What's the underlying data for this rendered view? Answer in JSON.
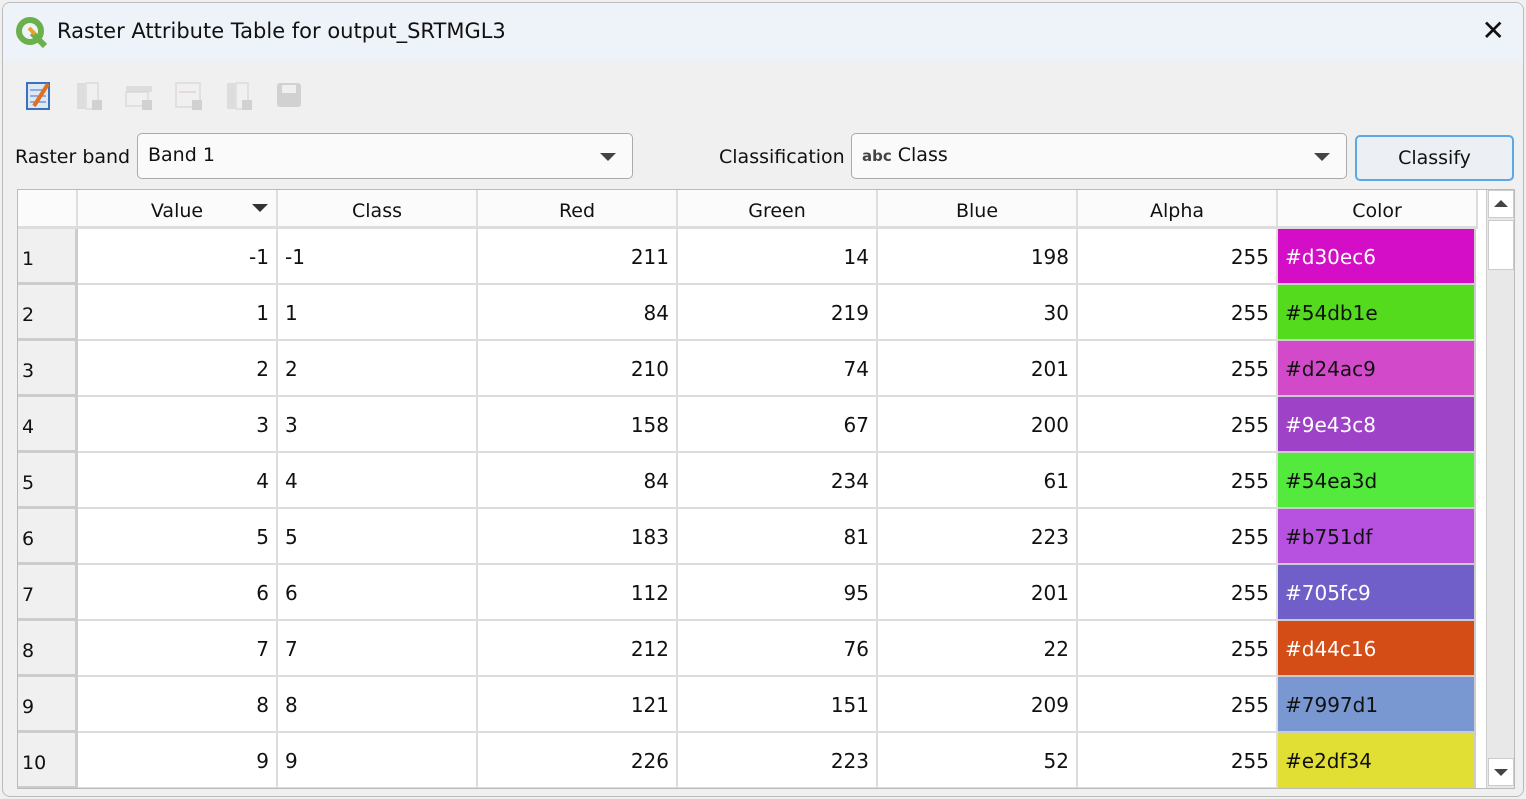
{
  "window": {
    "title": "Raster Attribute Table for output_SRTMGL3",
    "close_icon": "close-icon"
  },
  "toolbar": {
    "icons": [
      "edit-table-icon",
      "add-column-icon",
      "add-row-icon",
      "remove-row-icon",
      "remove-column-icon",
      "save-icon"
    ]
  },
  "band": {
    "label": "Raster band",
    "value": "Band 1"
  },
  "classification": {
    "label": "Classification",
    "prefix": "abc",
    "value": "Class"
  },
  "classify_label": "Classify",
  "table": {
    "columns": [
      "Value",
      "Class",
      "Red",
      "Green",
      "Blue",
      "Alpha",
      "Color"
    ],
    "rows": [
      {
        "n": "1",
        "value": "-1",
        "class": "-1",
        "red": "211",
        "green": "14",
        "blue": "198",
        "alpha": "255",
        "color": "#d30ec6"
      },
      {
        "n": "2",
        "value": "1",
        "class": "1",
        "red": "84",
        "green": "219",
        "blue": "30",
        "alpha": "255",
        "color": "#54db1e"
      },
      {
        "n": "3",
        "value": "2",
        "class": "2",
        "red": "210",
        "green": "74",
        "blue": "201",
        "alpha": "255",
        "color": "#d24ac9"
      },
      {
        "n": "4",
        "value": "3",
        "class": "3",
        "red": "158",
        "green": "67",
        "blue": "200",
        "alpha": "255",
        "color": "#9e43c8"
      },
      {
        "n": "5",
        "value": "4",
        "class": "4",
        "red": "84",
        "green": "234",
        "blue": "61",
        "alpha": "255",
        "color": "#54ea3d"
      },
      {
        "n": "6",
        "value": "5",
        "class": "5",
        "red": "183",
        "green": "81",
        "blue": "223",
        "alpha": "255",
        "color": "#b751df"
      },
      {
        "n": "7",
        "value": "6",
        "class": "6",
        "red": "112",
        "green": "95",
        "blue": "201",
        "alpha": "255",
        "color": "#705fc9"
      },
      {
        "n": "8",
        "value": "7",
        "class": "7",
        "red": "212",
        "green": "76",
        "blue": "22",
        "alpha": "255",
        "color": "#d44c16"
      },
      {
        "n": "9",
        "value": "8",
        "class": "8",
        "red": "121",
        "green": "151",
        "blue": "209",
        "alpha": "255",
        "color": "#7997d1"
      },
      {
        "n": "10",
        "value": "9",
        "class": "9",
        "red": "226",
        "green": "223",
        "blue": "52",
        "alpha": "255",
        "color": "#e2df34"
      }
    ]
  }
}
